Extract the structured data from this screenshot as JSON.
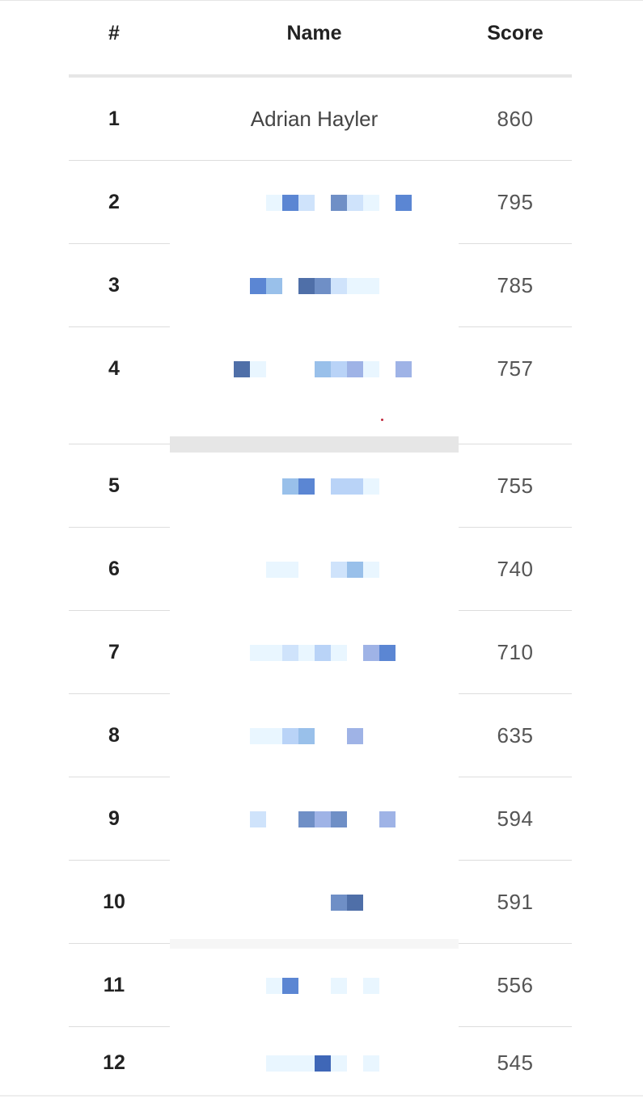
{
  "columns": {
    "rank": "#",
    "name": "Name",
    "score": "Score"
  },
  "rows": [
    {
      "rank": "1",
      "name": "Adrian Hayler",
      "score": "860",
      "obscured": false
    },
    {
      "rank": "2",
      "name": "",
      "score": "795",
      "obscured": true
    },
    {
      "rank": "3",
      "name": "",
      "score": "785",
      "obscured": true
    },
    {
      "rank": "4",
      "name": "",
      "score": "757",
      "obscured": true
    },
    {
      "rank": "5",
      "name": "",
      "score": "755",
      "obscured": true
    },
    {
      "rank": "6",
      "name": "",
      "score": "740",
      "obscured": true
    },
    {
      "rank": "7",
      "name": "",
      "score": "710",
      "obscured": true
    },
    {
      "rank": "8",
      "name": "",
      "score": "635",
      "obscured": true
    },
    {
      "rank": "9",
      "name": "",
      "score": "594",
      "obscured": true
    },
    {
      "rank": "10",
      "name": "",
      "score": "591",
      "obscured": true
    },
    {
      "rank": "11",
      "name": "",
      "score": "556",
      "obscured": true
    },
    {
      "rank": "12",
      "name": "",
      "score": "545",
      "obscured": true
    }
  ],
  "colors": {
    "header_rule": "#e6e6e6",
    "row_rule": "#dddddd",
    "mosaic_palette": [
      "#5b86d3",
      "#cfe3fb",
      "#6f8fc6",
      "#e9f6ff",
      "#99c0ea",
      "#4f6fa8",
      "#b9d3f7",
      "#9fb3e6",
      "#3f67b7"
    ]
  }
}
